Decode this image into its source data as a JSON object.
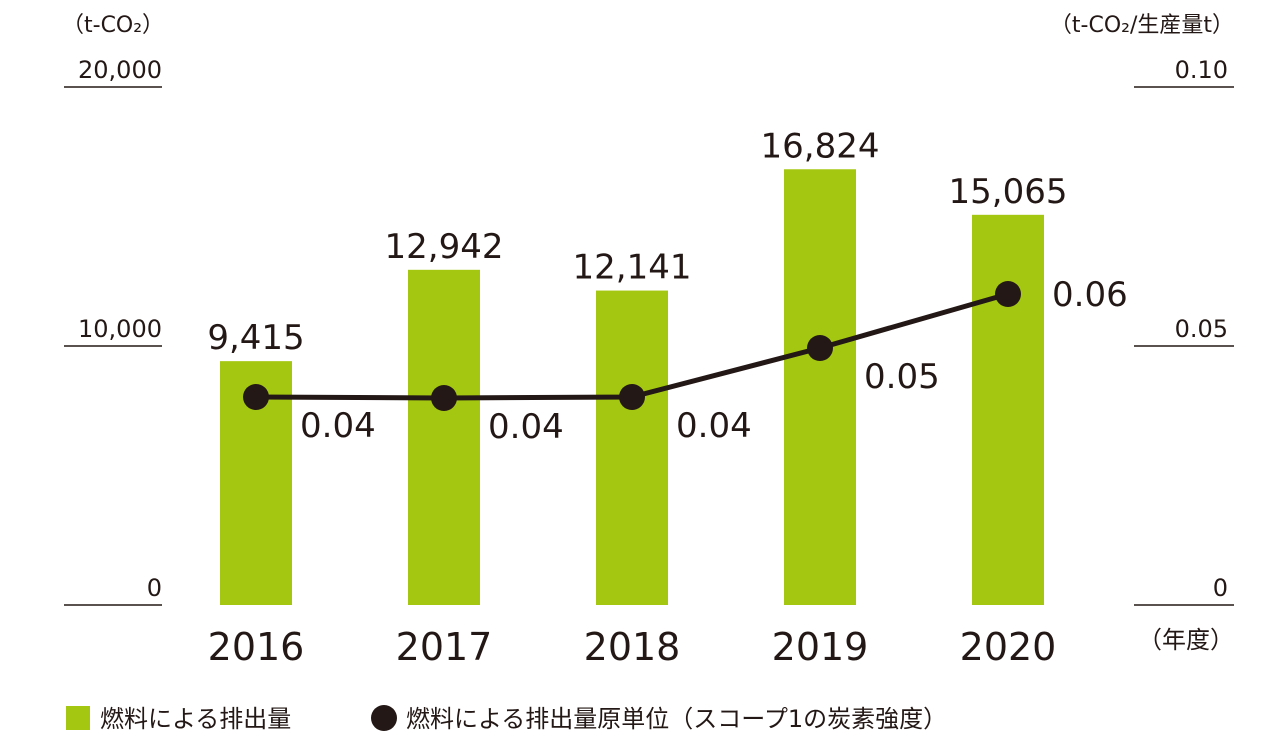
{
  "chart_data": {
    "type": "bar",
    "categories": [
      "2016",
      "2017",
      "2018",
      "2019",
      "2020"
    ],
    "xlabel": "（年度）",
    "left_axis": {
      "unit": "（t-CO₂）",
      "ticks": [
        "0",
        "10,000",
        "20,000"
      ],
      "ylim": [
        0,
        20000
      ]
    },
    "right_axis": {
      "unit": "（t-CO₂/生産量t）",
      "ticks": [
        "0",
        "0.05",
        "0.10"
      ],
      "ylim": [
        0,
        0.1
      ]
    },
    "series": [
      {
        "name": "燃料による排出量",
        "type": "bar",
        "axis": "left",
        "color": "#a4c712",
        "values": [
          9415,
          12942,
          12141,
          16824,
          15065
        ],
        "labels": [
          "9,415",
          "12,942",
          "12,141",
          "16,824",
          "15,065"
        ]
      },
      {
        "name": "燃料による排出量原単位（スコープ1の炭素強度）",
        "type": "line",
        "axis": "right",
        "color": "#231815",
        "values": [
          0.04,
          0.04,
          0.04,
          0.05,
          0.06
        ],
        "labels": [
          "0.04",
          "0.04",
          "0.04",
          "0.05",
          "0.06"
        ]
      }
    ],
    "legend_position": "bottom-left",
    "grid": false
  }
}
